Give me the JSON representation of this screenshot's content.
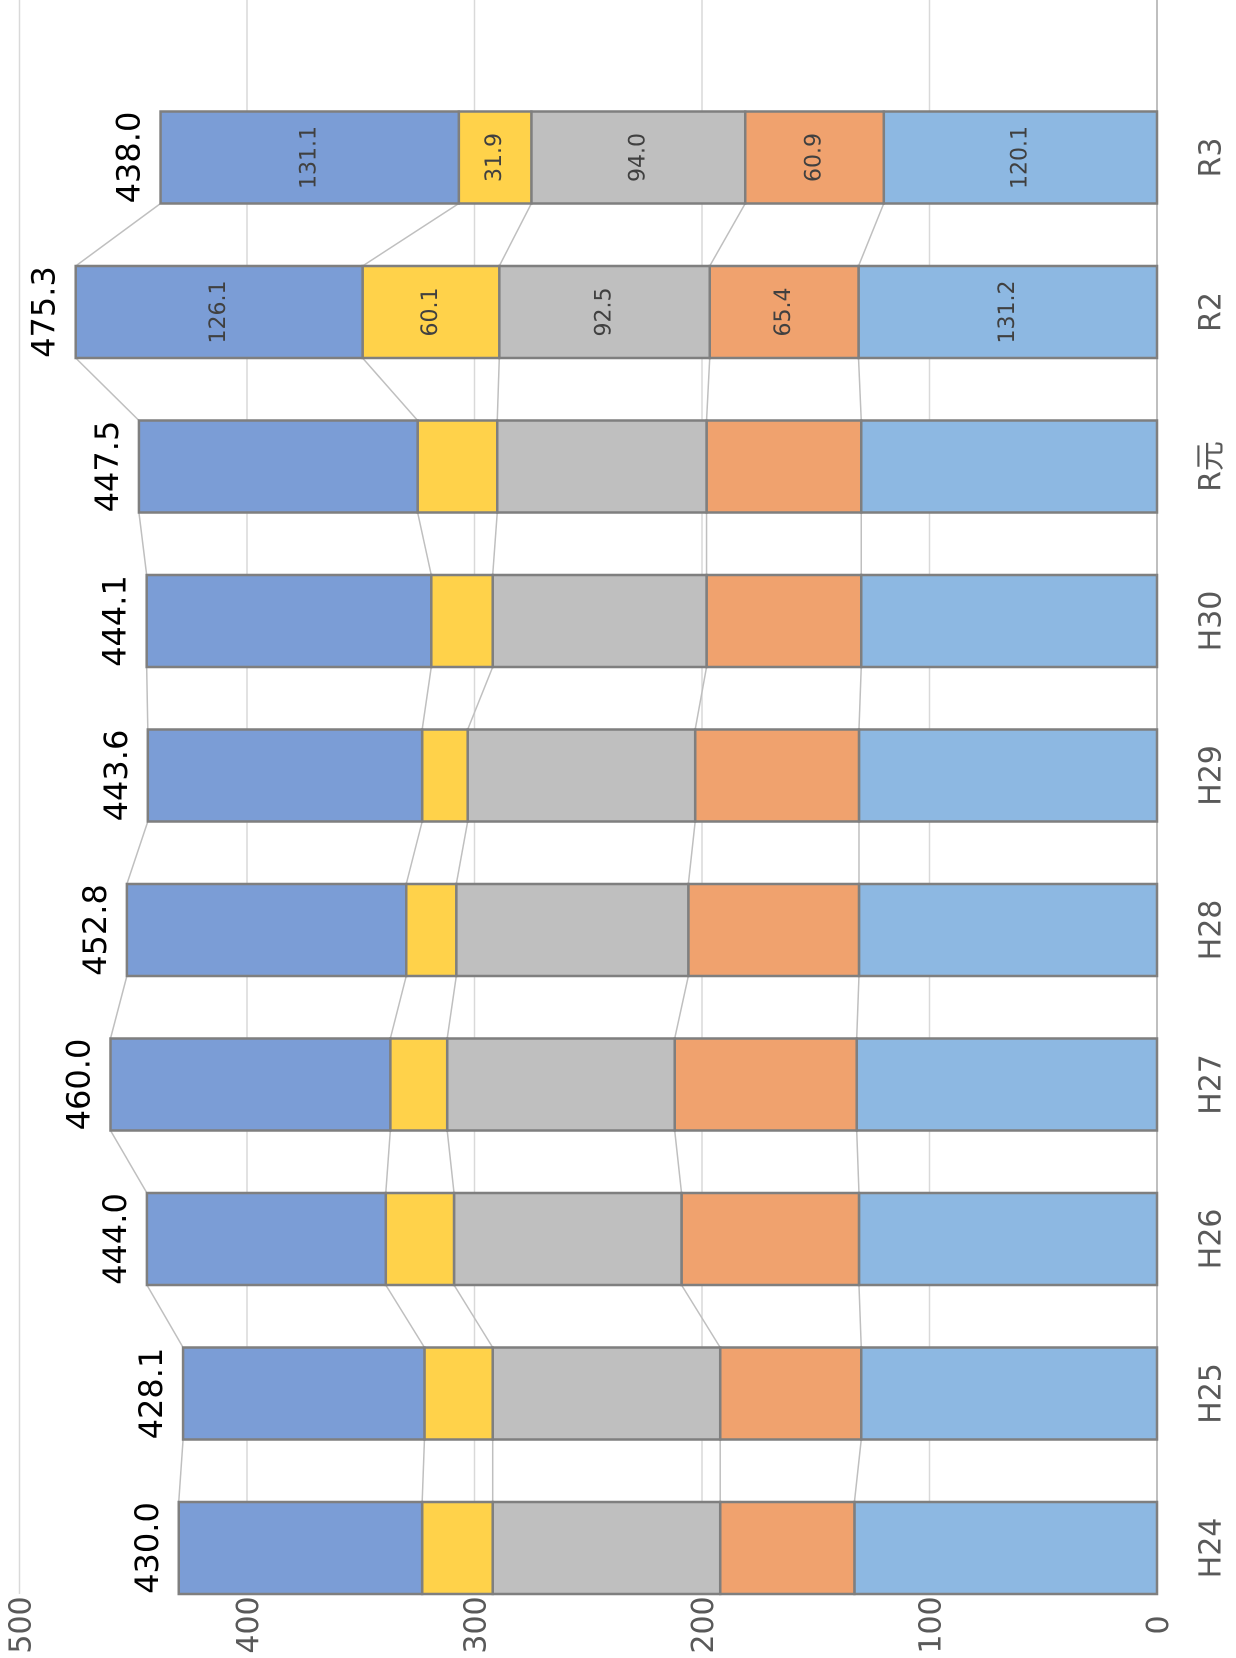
{
  "chart_data": {
    "type": "bar",
    "orientation": "stacked, rotated 90° clockwise",
    "title": "",
    "xlabel": "",
    "ylabel": "",
    "ylim": [
      0,
      500
    ],
    "yticks": [
      "0",
      "100",
      "200",
      "300",
      "400",
      "500"
    ],
    "grid": true,
    "legend": "none",
    "categories": [
      "H24",
      "H25",
      "H26",
      "H27",
      "H28",
      "H29",
      "H30",
      "R元",
      "R2",
      "R3"
    ],
    "series": [
      {
        "color": "#8DB8E2",
        "values": [
          133,
          130,
          131,
          132,
          131,
          131,
          130,
          130,
          131.2,
          120.1
        ]
      },
      {
        "color": "#F0A26E",
        "values": [
          59,
          62,
          78,
          80,
          75,
          72,
          68,
          68,
          65.4,
          60.9
        ]
      },
      {
        "color": "#BFBFBF",
        "values": [
          100,
          100,
          100,
          100,
          102,
          100,
          94,
          92,
          92.5,
          94.0
        ]
      },
      {
        "color": "#FFD24A",
        "values": [
          31,
          30,
          30,
          25,
          22,
          20,
          27,
          35,
          60.1,
          31.9
        ]
      },
      {
        "color": "#7B9DD6",
        "values": [
          107,
          106.1,
          105,
          123,
          122.8,
          120.6,
          125.1,
          122.5,
          126.1,
          131.1
        ]
      }
    ],
    "totals": [
      "430.0",
      "428.1",
      "444.0",
      "460.0",
      "452.8",
      "443.6",
      "444.1",
      "447.5",
      "475.3",
      "438.0"
    ],
    "segment_labels": {
      "R2": [
        "131.2",
        "65.4",
        "92.5",
        "60.1",
        "126.1"
      ],
      "R3": [
        "120.1",
        "60.9",
        "94.0",
        "31.9",
        "131.1"
      ]
    },
    "colors": {
      "grid": "#D9D9D9",
      "connector": "#BFBFBF",
      "border": "#7F7F7F"
    }
  }
}
